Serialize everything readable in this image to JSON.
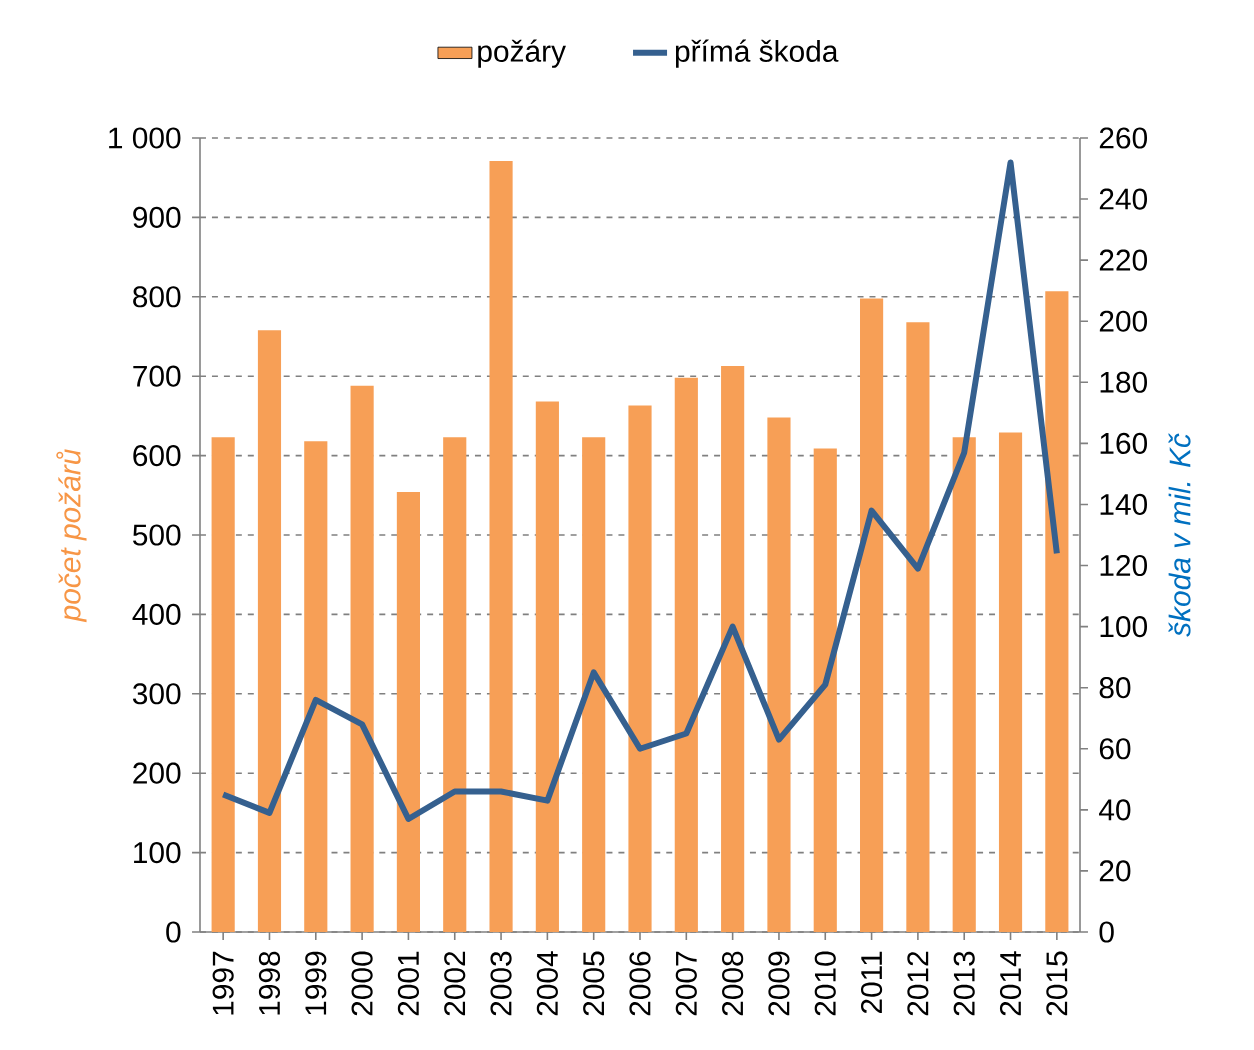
{
  "chart_data": {
    "type": "bar",
    "categories": [
      "1997",
      "1998",
      "1999",
      "2000",
      "2001",
      "2002",
      "2003",
      "2004",
      "2005",
      "2006",
      "2007",
      "2008",
      "2009",
      "2010",
      "2011",
      "2012",
      "2013",
      "2014",
      "2015"
    ],
    "series": [
      {
        "name": "požáry",
        "color": "#f79f56",
        "values": [
          623,
          758,
          618,
          688,
          554,
          623,
          971,
          668,
          623,
          663,
          698,
          713,
          648,
          609,
          798,
          768,
          623,
          629,
          807
        ]
      },
      {
        "name": "přímá škoda",
        "type": "line",
        "axis": "y2",
        "color": "#35608f",
        "values": [
          45,
          39,
          76,
          68,
          37,
          46,
          46,
          43,
          85,
          60,
          65,
          100,
          63,
          81,
          138,
          119,
          157,
          252,
          124
        ]
      }
    ],
    "ylabel": "počet požárů",
    "y2label": "škoda v mil. Kč",
    "ylim": [
      0,
      1000
    ],
    "yticks": [
      0,
      100,
      200,
      300,
      400,
      500,
      600,
      700,
      800,
      900,
      {
        "value": 1000,
        "label": "1 000"
      }
    ],
    "y2lim": [
      0,
      260
    ],
    "y2ticks": [
      0,
      20,
      40,
      60,
      80,
      100,
      120,
      140,
      160,
      180,
      200,
      220,
      240,
      260
    ],
    "grid": "y",
    "legend": "top"
  }
}
